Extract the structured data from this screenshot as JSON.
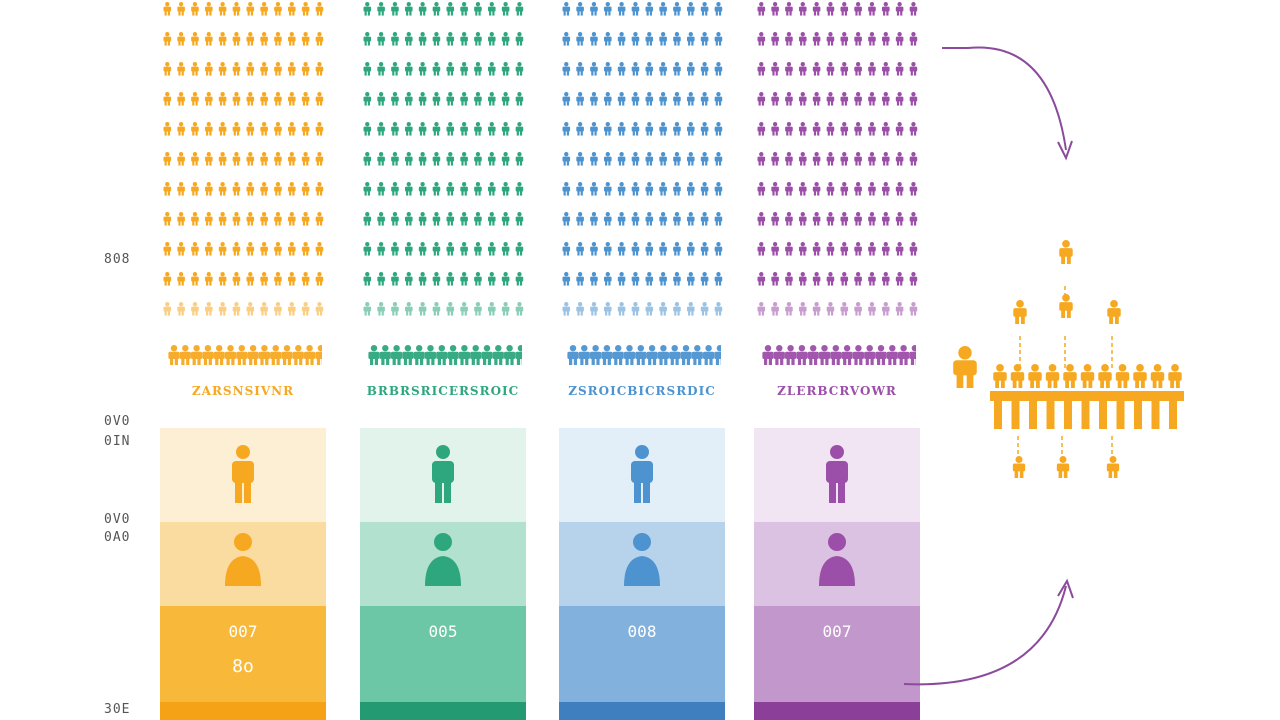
{
  "axis_labels": [
    "808",
    "0V0",
    "0IN",
    "0V0",
    "0A0",
    "30E"
  ],
  "colors": {
    "orange": "#f6a821",
    "green": "#2ea77f",
    "blue": "#4d93cf",
    "purple": "#9b4fa8",
    "arrow": "#8b4a9c"
  },
  "columns": [
    {
      "id": "orange",
      "title": "ZARSNSIVNR",
      "value": "007",
      "sub_value": "8o",
      "color": "#f6a821",
      "light": "#fdefd3",
      "mid": "#fbdca0",
      "strong": "#f8b83a",
      "base": "#f5a216"
    },
    {
      "id": "green",
      "title": "BRBRSRICERSROIC",
      "value": "005",
      "sub_value": "",
      "color": "#2ea77f",
      "light": "#e2f3ec",
      "mid": "#b3e1cf",
      "strong": "#6cc7a7",
      "base": "#239a72"
    },
    {
      "id": "blue",
      "title": "ZSROICBICRSRDIC",
      "value": "008",
      "sub_value": "",
      "color": "#4d93cf",
      "light": "#e2eef8",
      "mid": "#b7d3ec",
      "strong": "#82b1de",
      "base": "#3f7fc0"
    },
    {
      "id": "purple",
      "title": "ZLERBCRVOWR",
      "value": "007",
      "sub_value": "",
      "color": "#9b4fa8",
      "light": "#f1e5f3",
      "mid": "#dcc2e2",
      "strong": "#c297cc",
      "base": "#8b3f99"
    }
  ],
  "people_grid": {
    "rows": 11,
    "cols": 12
  },
  "icons": {
    "person": "person-icon",
    "arrow": "curved-arrow-icon"
  }
}
